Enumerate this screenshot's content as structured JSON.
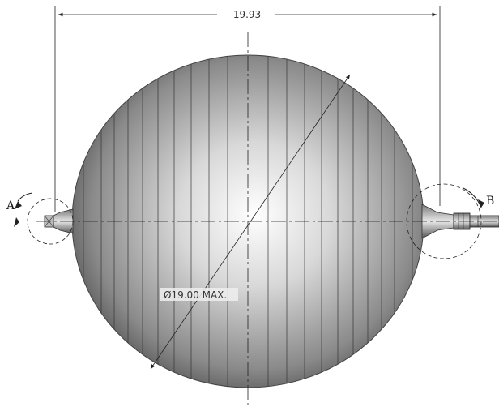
{
  "drawing": {
    "overall_length": "19.93",
    "diameter_callout": "Ø19.00 MAX.",
    "detail_a_label": "A",
    "detail_b_label": "B"
  },
  "style": {
    "line_color": "#222222",
    "sphere_dark": "#3a3a3a",
    "sphere_light": "#ffffff"
  },
  "icons": {
    "detail_a_marker": "circular-arrow-icon",
    "detail_b_marker": "circular-arrow-icon"
  }
}
